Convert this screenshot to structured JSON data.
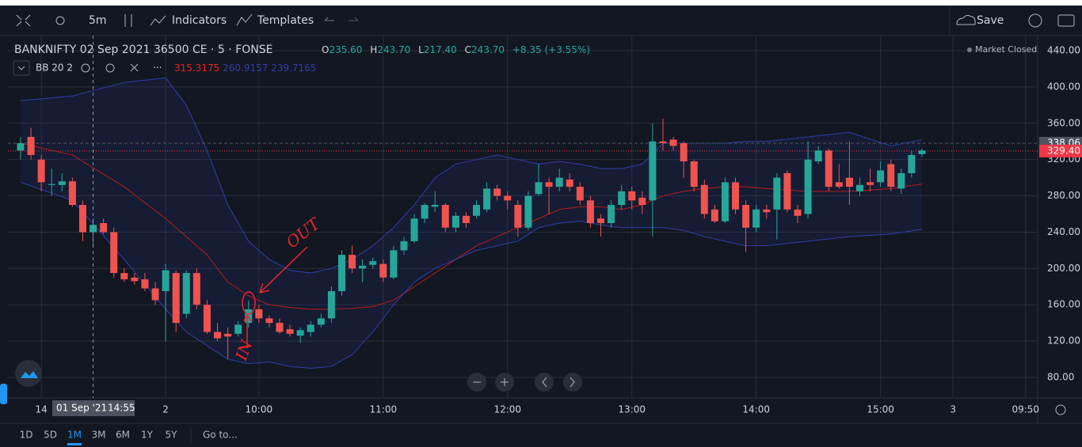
{
  "toolbar": {
    "interval": "5m",
    "indicators": "Indicators",
    "templates": "Templates",
    "save": "Save"
  },
  "legend": {
    "symbol": "BANKNIFTY 02 Sep 2021 36500 CE · 5 · FONSE",
    "ohlc": [
      {
        "label": "O",
        "value": "235.60"
      },
      {
        "label": "H",
        "value": "243.70"
      },
      {
        "label": "L",
        "value": "217.40"
      },
      {
        "label": "C",
        "value": "243.70"
      }
    ],
    "change": "+8.35 (+3.55%)",
    "status": "Market Closed",
    "indicator": "BB 20 2",
    "indicator_values": [
      "315.3175",
      "260.9157",
      "239.7165"
    ]
  },
  "chart_data": {
    "type": "candlestick",
    "categories": [
      null,
      null,
      "14",
      null,
      null,
      null,
      null,
      null,
      null,
      null,
      null,
      null,
      null,
      null,
      "2",
      null,
      null,
      null,
      null,
      null,
      null,
      null,
      null,
      "10:00",
      null,
      null,
      null,
      null,
      null,
      null,
      null,
      null,
      null,
      null,
      null,
      "11:00",
      null,
      null,
      null,
      null,
      null,
      null,
      null,
      null,
      null,
      null,
      null,
      "12:00",
      null,
      null,
      null,
      null,
      null,
      null,
      null,
      null,
      null,
      null,
      null,
      "13:00",
      null,
      null,
      null,
      null,
      null,
      null,
      null,
      null,
      null,
      null,
      null,
      "14:00",
      null,
      null,
      null,
      null,
      null,
      null,
      null,
      null,
      null,
      null,
      null,
      "15:00",
      null,
      null,
      null,
      null,
      null,
      null,
      "3",
      null,
      null,
      null,
      null,
      null,
      null,
      "09:50",
      null
    ],
    "open": [
      330,
      345,
      320,
      292,
      292,
      296,
      270,
      240,
      250,
      240,
      195,
      190,
      188,
      178,
      175,
      195,
      150,
      195,
      160,
      130,
      128,
      128,
      140,
      155,
      145,
      140,
      133,
      126,
      130,
      138,
      145,
      175,
      215,
      200,
      204,
      205,
      190,
      220,
      230,
      255,
      268,
      270,
      245,
      258,
      258,
      265,
      288,
      280,
      270,
      245,
      282,
      295,
      290,
      298,
      290,
      275,
      255,
      250,
      270,
      285,
      278,
      275,
      340,
      342,
      338,
      318,
      292,
      265,
      252,
      295,
      270,
      245,
      265,
      265,
      305,
      265,
      260,
      318,
      330,
      295,
      300,
      285,
      295,
      295,
      315,
      288,
      305,
      326,
      null,
      null,
      null,
      null,
      null,
      null,
      null,
      null,
      null,
      null,
      null
    ],
    "high": [
      345,
      355,
      325,
      310,
      305,
      300,
      275,
      255,
      255,
      245,
      200,
      195,
      195,
      185,
      205,
      198,
      198,
      200,
      165,
      140,
      135,
      142,
      165,
      160,
      148,
      145,
      138,
      135,
      142,
      150,
      180,
      220,
      225,
      210,
      212,
      210,
      225,
      235,
      260,
      272,
      285,
      272,
      262,
      262,
      275,
      295,
      292,
      285,
      275,
      285,
      315,
      300,
      310,
      305,
      295,
      280,
      260,
      275,
      292,
      290,
      285,
      360,
      365,
      345,
      340,
      320,
      298,
      270,
      300,
      300,
      275,
      270,
      270,
      305,
      308,
      270,
      340,
      335,
      332,
      315,
      340,
      300,
      310,
      318,
      320,
      310,
      330,
      332,
      null,
      null,
      null,
      null,
      null,
      null,
      null,
      null,
      null,
      null,
      null
    ],
    "low": [
      320,
      320,
      285,
      280,
      285,
      268,
      230,
      225,
      238,
      190,
      185,
      182,
      175,
      160,
      120,
      130,
      145,
      155,
      128,
      120,
      100,
      125,
      135,
      140,
      135,
      128,
      125,
      118,
      125,
      135,
      140,
      170,
      195,
      185,
      200,
      185,
      188,
      215,
      228,
      250,
      262,
      240,
      240,
      245,
      255,
      262,
      275,
      265,
      235,
      242,
      280,
      260,
      285,
      285,
      270,
      245,
      235,
      245,
      265,
      265,
      260,
      235,
      330,
      330,
      300,
      285,
      255,
      250,
      250,
      260,
      218,
      240,
      255,
      232,
      262,
      250,
      255,
      315,
      285,
      288,
      270,
      280,
      285,
      290,
      285,
      282,
      300,
      323,
      null,
      null,
      null,
      null,
      null,
      null,
      null,
      null,
      null,
      null,
      null
    ],
    "close": [
      338,
      325,
      295,
      293,
      296,
      270,
      240,
      248,
      240,
      195,
      188,
      186,
      178,
      165,
      198,
      140,
      195,
      160,
      130,
      123,
      125,
      138,
      155,
      145,
      140,
      130,
      128,
      132,
      138,
      145,
      175,
      215,
      200,
      203,
      208,
      190,
      220,
      230,
      255,
      270,
      270,
      245,
      258,
      250,
      270,
      288,
      280,
      275,
      245,
      280,
      295,
      290,
      300,
      290,
      275,
      250,
      250,
      270,
      285,
      275,
      270,
      340,
      338,
      335,
      318,
      290,
      260,
      252,
      295,
      265,
      245,
      265,
      262,
      300,
      265,
      258,
      320,
      330,
      290,
      290,
      290,
      292,
      292,
      308,
      290,
      305,
      325,
      330,
      null,
      null,
      null,
      null,
      null,
      null,
      null,
      null,
      null,
      null,
      null
    ],
    "up_color": "#26a69a",
    "down_color": "#ef5350",
    "bands": {
      "x": [
        0,
        5,
        10,
        14,
        16,
        18,
        20,
        22,
        24,
        26,
        28,
        30,
        32,
        34,
        36,
        38,
        40,
        42,
        44,
        46,
        48,
        50,
        52,
        54,
        56,
        58,
        60,
        62,
        64,
        66,
        68,
        70,
        72,
        76,
        80,
        84,
        87
      ],
      "series": [
        {
          "name": "upper",
          "color": "#2f3fa8",
          "values": [
            385,
            390,
            405,
            410,
            380,
            330,
            270,
            230,
            210,
            198,
            195,
            200,
            210,
            225,
            245,
            270,
            300,
            315,
            320,
            325,
            320,
            315,
            318,
            315,
            310,
            310,
            315,
            338,
            338,
            338,
            338,
            340,
            340,
            345,
            350,
            335,
            342
          ]
        },
        {
          "name": "basis",
          "color": "#b71c1c",
          "values": [
            338,
            325,
            290,
            255,
            235,
            215,
            185,
            170,
            160,
            157,
            155,
            155,
            156,
            158,
            165,
            180,
            195,
            210,
            225,
            235,
            245,
            255,
            265,
            268,
            268,
            265,
            270,
            280,
            285,
            288,
            290,
            290,
            288,
            285,
            285,
            288,
            293
          ]
        },
        {
          "name": "lower",
          "color": "#2f3fa8",
          "values": [
            295,
            275,
            210,
            155,
            130,
            115,
            100,
            95,
            97,
            92,
            90,
            92,
            105,
            130,
            160,
            185,
            200,
            210,
            220,
            225,
            230,
            245,
            250,
            252,
            248,
            245,
            245,
            245,
            242,
            235,
            230,
            225,
            225,
            230,
            235,
            238,
            243
          ]
        }
      ]
    },
    "ylim": [
      57.3,
      456.6
    ],
    "yticks": [
      {
        "value": 80,
        "label": "80.00"
      },
      {
        "value": 120,
        "label": "120.00"
      },
      {
        "value": 160,
        "label": "160.00"
      },
      {
        "value": 200,
        "label": "200.00"
      },
      {
        "value": 240,
        "label": "240.00"
      },
      {
        "value": 280,
        "label": "280.00"
      },
      {
        "value": 320,
        "label": "320.00"
      },
      {
        "value": 360,
        "label": "360.00"
      },
      {
        "value": 400,
        "label": "400.00"
      },
      {
        "value": 440,
        "label": "440.00"
      }
    ],
    "grid": true,
    "price_lines": [
      {
        "value": 338.06,
        "label": "338.06",
        "color": "#50535e"
      },
      {
        "value": 329.4,
        "label": "329.40",
        "color": "#f23645"
      }
    ],
    "crosshair": {
      "category_index": 7,
      "date": "01 Sep '21",
      "time": "14:55"
    },
    "annotations": [
      {
        "text": "OUT"
      },
      {
        "text": "IN"
      }
    ]
  },
  "ranges": [
    "1D",
    "5D",
    "1M",
    "3M",
    "6M",
    "1Y",
    "5Y"
  ],
  "selected_range": "1M",
  "goto": "Go to..."
}
